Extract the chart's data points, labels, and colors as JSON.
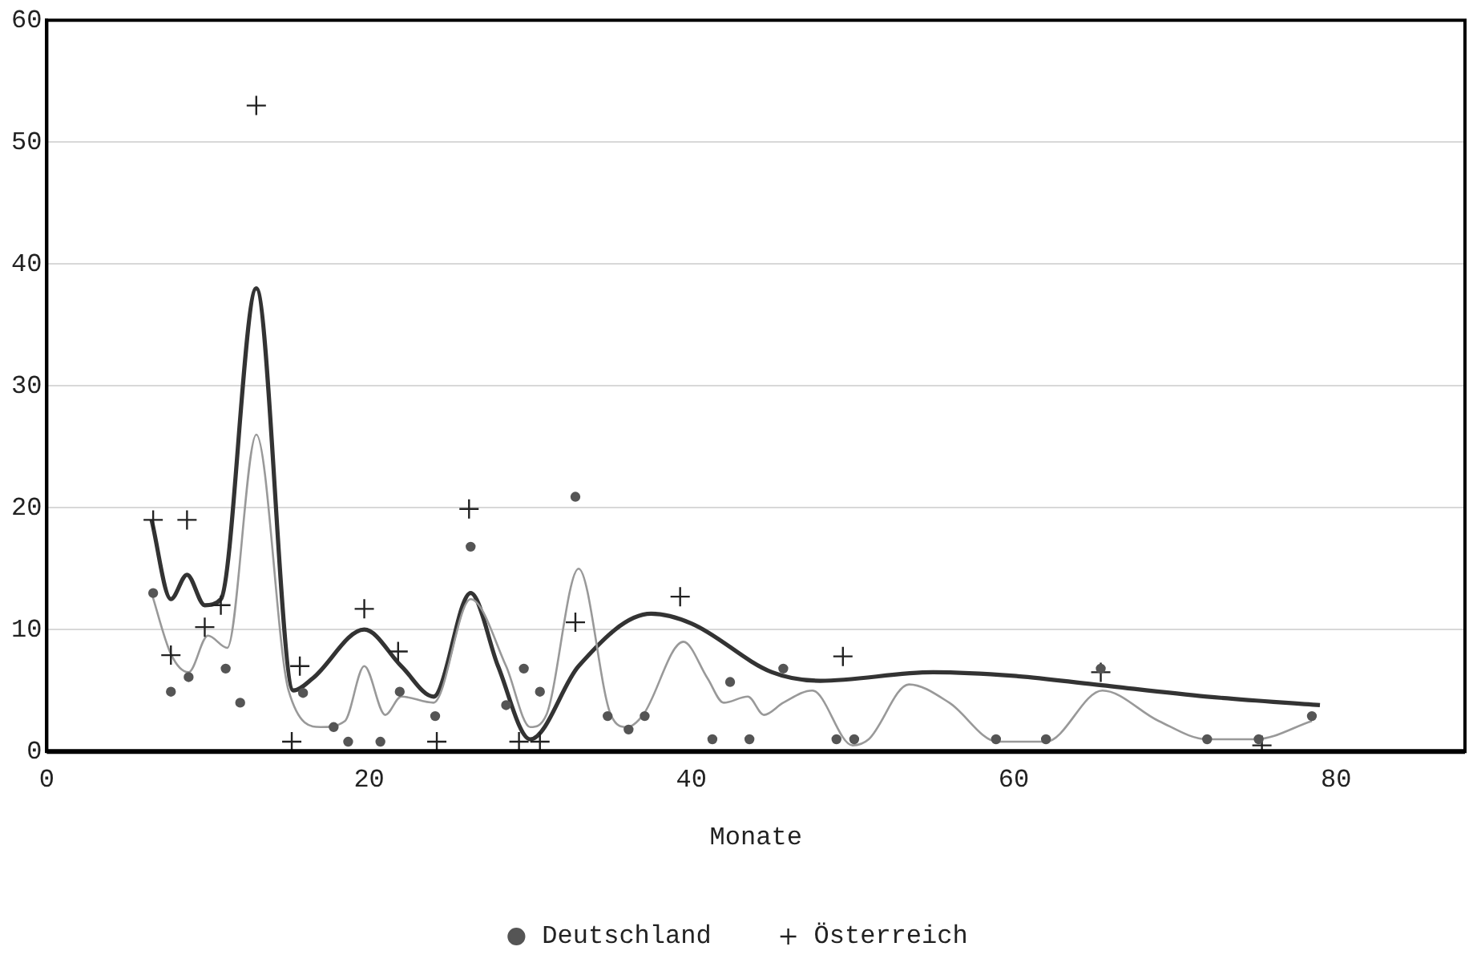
{
  "chart_data": {
    "type": "scatter",
    "xlabel": "Monate",
    "xlim": [
      0,
      88
    ],
    "xticks": [
      0,
      20,
      40,
      60,
      80
    ],
    "ylim": [
      0,
      60
    ],
    "yticks": [
      0,
      10,
      20,
      30,
      40,
      50,
      60
    ],
    "grid": "y",
    "legend": "bottom",
    "series": [
      {
        "name": "Deutschland",
        "type": "scatter",
        "marker": "circle",
        "color": "#555555",
        "x": [
          6.6,
          7.7,
          8.8,
          11.1,
          12,
          15.9,
          17.8,
          18.7,
          20.7,
          21.9,
          24.1,
          26.3,
          28.5,
          29.6,
          30.6,
          32.8,
          34.8,
          36.1,
          37.1,
          41.3,
          42.4,
          43.6,
          45.7,
          49,
          50.1,
          58.9,
          62,
          65.4,
          72,
          75.2,
          78.5
        ],
        "values": [
          13,
          4.9,
          6.1,
          6.8,
          4,
          4.8,
          2,
          0.8,
          0.8,
          4.9,
          2.9,
          16.8,
          3.8,
          6.8,
          4.9,
          20.9,
          2.9,
          1.8,
          2.9,
          1,
          5.7,
          1,
          6.8,
          1,
          1,
          1,
          1,
          6.8,
          1,
          1,
          2.9
        ]
      },
      {
        "name": "Österreich",
        "type": "scatter",
        "marker": "cross",
        "color": "#222222",
        "x": [
          6.6,
          7.7,
          8.7,
          9.8,
          10.8,
          13,
          15.2,
          15.7,
          19.7,
          21.8,
          24.2,
          26.2,
          29.3,
          30.6,
          32.8,
          39.3,
          49.4,
          65.4,
          75.4
        ],
        "values": [
          19,
          7.9,
          19,
          10.2,
          12,
          53,
          0.8,
          7,
          11.7,
          8.2,
          0.8,
          19.9,
          0.8,
          0.8,
          10.6,
          12.7,
          7.8,
          6.5,
          0.5
        ]
      },
      {
        "type": "line",
        "marker": "none",
        "color": "#999999",
        "x": [
          6.5,
          7.7,
          8.8,
          10,
          11.2,
          13,
          15,
          17,
          18.5,
          19.7,
          21,
          22,
          24,
          26.3,
          28.5,
          30,
          31,
          33,
          35,
          36,
          37,
          39.5,
          41,
          42,
          43.5,
          44.5,
          45.7,
          47.5,
          50,
          51,
          53.5,
          56,
          59,
          62,
          65.5,
          69,
          72,
          75,
          78.5
        ],
        "values": [
          13,
          8,
          6.5,
          9.5,
          8.5,
          26,
          5,
          2,
          2.5,
          7,
          3,
          4.5,
          4,
          12.5,
          7,
          2,
          3,
          15,
          3,
          2,
          3,
          9,
          6,
          4,
          4.5,
          3,
          4,
          5,
          0.5,
          1,
          5.5,
          4,
          0.8,
          0.8,
          5,
          2.5,
          1,
          1,
          2.5
        ]
      },
      {
        "type": "line",
        "marker": "none",
        "color": "#333333",
        "x": [
          6.5,
          7.7,
          8.7,
          9.8,
          10.8,
          13,
          15.3,
          16.5,
          19.7,
          22,
          24,
          26.3,
          28,
          30,
          33,
          37.5,
          40,
          45,
          48,
          55,
          60,
          65,
          72,
          79
        ],
        "values": [
          19,
          12.5,
          14.5,
          12,
          12.5,
          38,
          5,
          6,
          10,
          7,
          4.5,
          13,
          7,
          1,
          7,
          11.3,
          10.5,
          6.5,
          5.8,
          6.5,
          6.2,
          5.5,
          4.5,
          3.8
        ]
      }
    ]
  }
}
